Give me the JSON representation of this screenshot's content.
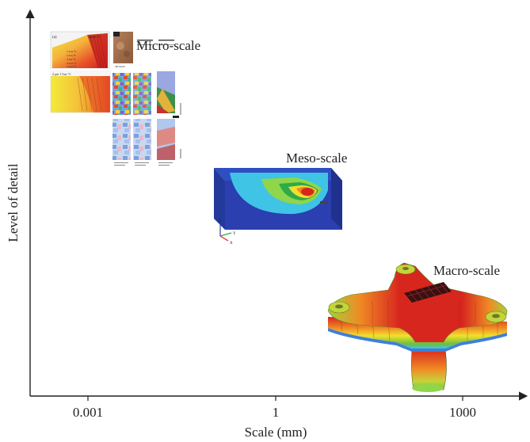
{
  "axes": {
    "xlabel": "Scale (mm)",
    "ylabel": "Level of detail",
    "ticks": [
      "0.001",
      "1",
      "1000"
    ]
  },
  "scales": {
    "micro": "Micro-scale",
    "meso": "Meso-scale",
    "macro": "Macro-scale"
  },
  "micro_panel": {
    "top_left_caption": "(a)",
    "top_right_caption": "2000 °C",
    "legend_items": [
      "1 Gas °C",
      "2 Liq °C",
      "3 Sol °C",
      "4 Gas °C",
      "5 Gas °C"
    ],
    "mid_caption": "2 μm  1 Gas °C",
    "photo_caption": "3D mesh"
  },
  "meso_panel": {
    "triad_z": "Z",
    "triad_y": "Y",
    "triad_x": "X"
  },
  "colors": {
    "axis": "#222222",
    "red": "#d7261e",
    "orange": "#f08a24",
    "yellow": "#f2e02c",
    "green": "#6fbf3a",
    "cyan": "#3fc4e6",
    "blue": "#2b3fb0"
  }
}
